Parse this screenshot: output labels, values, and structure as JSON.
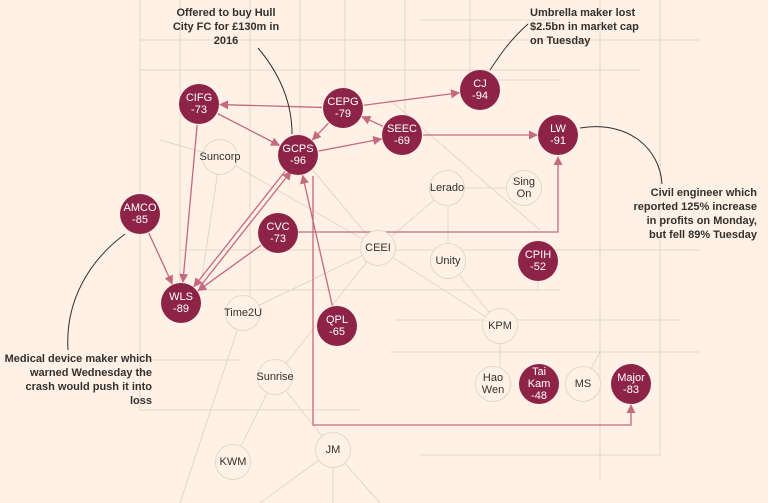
{
  "annotations": [
    "Offered to buy Hull City FC for £130m in 2016",
    "Umbrella maker lost $2.5bn in market cap on Tuesday",
    "Civil engineer which reported 125% increase in profits on Monday, but fell 89% Tuesday",
    "Medical device maker which warned Wednesday the crash would push it into loss"
  ],
  "nodes": [
    {
      "label": "CIFG",
      "value": -73
    },
    {
      "label": "CEPG",
      "value": -79
    },
    {
      "label": "CJ",
      "value": -94
    },
    {
      "label": "SEEC",
      "value": -69
    },
    {
      "label": "LW",
      "value": -91
    },
    {
      "label": "GCPS",
      "value": -96
    },
    {
      "label": "Suncorp"
    },
    {
      "label": "Lerado"
    },
    {
      "label": "Sing On"
    },
    {
      "label": "AMCO",
      "value": -85
    },
    {
      "label": "CVC",
      "value": -73
    },
    {
      "label": "CEEI"
    },
    {
      "label": "Unity"
    },
    {
      "label": "CPIH",
      "value": -52
    },
    {
      "label": "WLS",
      "value": -89
    },
    {
      "label": "Time2U"
    },
    {
      "label": "QPL",
      "value": -65
    },
    {
      "label": "KPM"
    },
    {
      "label": "Hao Wen"
    },
    {
      "label": "Tai Kam",
      "value": -48
    },
    {
      "label": "MS"
    },
    {
      "label": "Major",
      "value": -83
    },
    {
      "label": "Sunrise"
    },
    {
      "label": "KWM"
    },
    {
      "label": "JM"
    }
  ]
}
